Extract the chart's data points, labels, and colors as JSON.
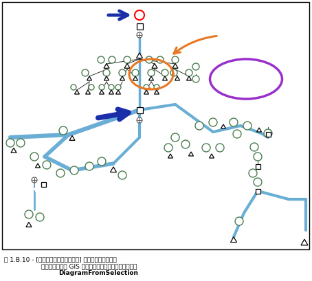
{
  "bg_color": "#ffffff",
  "border_color": "#000000",
  "node_circle_color": "#4a7c4e",
  "edge_color": "#6aaed6",
  "edge_width": 3.0,
  "thin_edge_color": "#333333",
  "thin_edge_width": 0.7,
  "red_circle_color": "#ff0000",
  "purple_ellipse_color": "#9930cc",
  "orange_color": "#e87722",
  "blue_arrow_color": "#1a2eaa",
  "figsize": [
    4.54,
    4.09
  ],
  "dpi": 100,
  "caption_lines": [
    "図 1.B.10 - [ダイアグラムの完全同期] オプションがオンで",
    "更新中に新しい GIS フィーチャ選択セットを追加後の",
    "DiagramFromSelection"
  ],
  "caption_bold": [
    false,
    false,
    true
  ]
}
